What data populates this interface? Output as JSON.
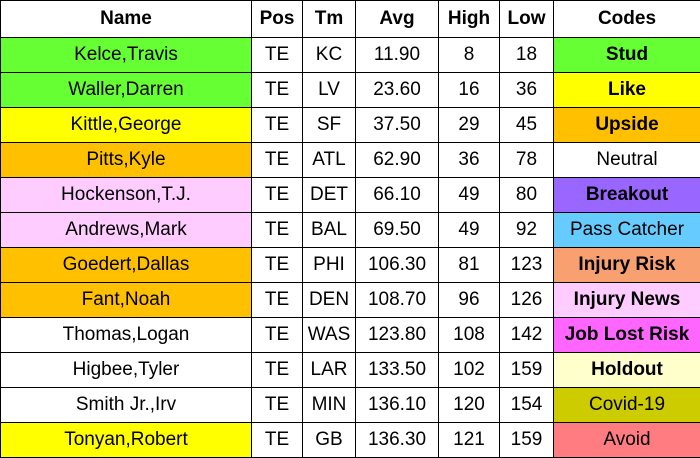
{
  "table": {
    "header": [
      "Name",
      "Pos",
      "Tm",
      "Avg",
      "High",
      "Low",
      "Codes"
    ],
    "rows": [
      {
        "cells": [
          "Kelce,Travis",
          "TE",
          "KC",
          "11.90",
          "8",
          "18",
          "Stud"
        ],
        "name_color": "#66ff33",
        "code_color": "#66ff33",
        "code_bold": true
      },
      {
        "cells": [
          "Waller,Darren",
          "TE",
          "LV",
          "23.60",
          "16",
          "36",
          "Like"
        ],
        "name_color": "#66ff33",
        "code_color": "#ffff00",
        "code_bold": true
      },
      {
        "cells": [
          "Kittle,George",
          "TE",
          "SF",
          "37.50",
          "29",
          "45",
          "Upside"
        ],
        "name_color": "#ffff00",
        "code_color": "#ffc000",
        "code_bold": true
      },
      {
        "cells": [
          "Pitts,Kyle",
          "TE",
          "ATL",
          "62.90",
          "36",
          "78",
          "Neutral"
        ],
        "name_color": "#ffc000",
        "code_color": "#ffffff",
        "code_bold": false
      },
      {
        "cells": [
          "Hockenson,T.J.",
          "TE",
          "DET",
          "66.10",
          "49",
          "80",
          "Breakout"
        ],
        "name_color": "#ffccff",
        "code_color": "#9966ff",
        "code_bold": true
      },
      {
        "cells": [
          "Andrews,Mark",
          "TE",
          "BAL",
          "69.50",
          "49",
          "92",
          "Pass Catcher"
        ],
        "name_color": "#ffccff",
        "code_color": "#66ccff",
        "code_bold": false
      },
      {
        "cells": [
          "Goedert,Dallas",
          "TE",
          "PHI",
          "106.30",
          "81",
          "123",
          "Injury Risk"
        ],
        "name_color": "#ffc000",
        "code_color": "#f8a070",
        "code_bold": true
      },
      {
        "cells": [
          "Fant,Noah",
          "TE",
          "DEN",
          "108.70",
          "96",
          "126",
          "Injury News"
        ],
        "name_color": "#ffc000",
        "code_color": "#ffccff",
        "code_bold": true
      },
      {
        "cells": [
          "Thomas,Logan",
          "TE",
          "WAS",
          "123.80",
          "108",
          "142",
          "Job Lost Risk"
        ],
        "name_color": "#ffffff",
        "code_color": "#ff66ff",
        "code_bold": true
      },
      {
        "cells": [
          "Higbee,Tyler",
          "TE",
          "LAR",
          "133.50",
          "102",
          "159",
          "Holdout"
        ],
        "name_color": "#ffffff",
        "code_color": "#ffffcc",
        "code_bold": true
      },
      {
        "cells": [
          "Smith Jr.,Irv",
          "TE",
          "MIN",
          "136.10",
          "120",
          "154",
          "Covid-19"
        ],
        "name_color": "#ffffff",
        "code_color": "#cccc00",
        "code_bold": false
      },
      {
        "cells": [
          "Tonyan,Robert",
          "TE",
          "GB",
          "136.30",
          "121",
          "159",
          "Avoid"
        ],
        "name_color": "#ffff00",
        "code_color": "#ff7c80",
        "code_bold": false
      }
    ]
  }
}
